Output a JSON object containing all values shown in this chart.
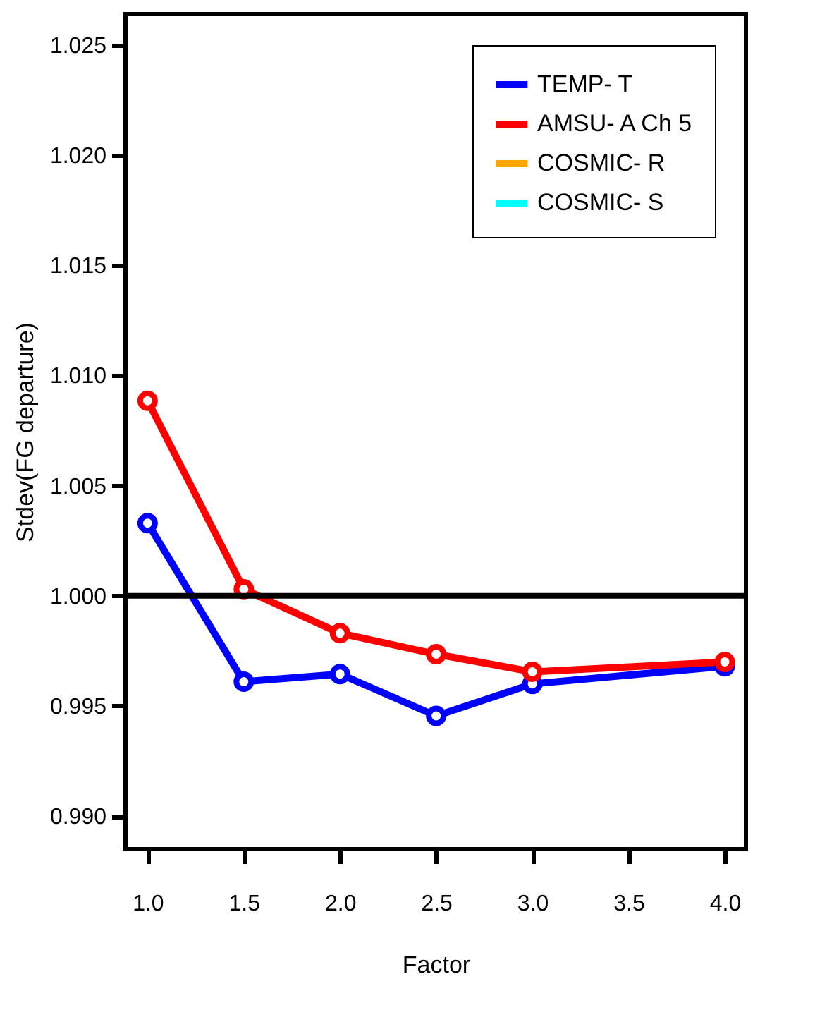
{
  "chart_data": {
    "type": "line",
    "xlabel": "Factor",
    "ylabel": "Stdev(FG departure)",
    "x": [
      1.0,
      1.5,
      2.0,
      2.5,
      3.0,
      4.0
    ],
    "series": [
      {
        "name": "TEMP- T",
        "color": "#0000ff",
        "values": [
          1.0033,
          0.9961,
          0.99645,
          0.99455,
          0.996,
          0.9968
        ]
      },
      {
        "name": "AMSU- A Ch 5",
        "color": "#ff0000",
        "values": [
          1.00885,
          1.0003,
          0.9983,
          0.99735,
          0.99655,
          0.997
        ]
      },
      {
        "name": "COSMIC- R",
        "color": "#ffa500",
        "values": [
          null,
          null,
          null,
          null,
          null,
          null
        ]
      },
      {
        "name": "COSMIC- S",
        "color": "#00ffff",
        "values": [
          null,
          null,
          null,
          null,
          null,
          null
        ]
      }
    ],
    "xlim": [
      0.885,
      4.11
    ],
    "xticks": [
      {
        "value": 1.0,
        "label": "1.0"
      },
      {
        "value": 1.5,
        "label": "1.5"
      },
      {
        "value": 2.0,
        "label": "2.0"
      },
      {
        "value": 2.5,
        "label": "2.5"
      },
      {
        "value": 3.0,
        "label": "3.0"
      },
      {
        "value": 3.5,
        "label": "3.5"
      },
      {
        "value": 4.0,
        "label": "4.0"
      }
    ],
    "ylim": [
      0.9885,
      1.0264
    ],
    "yticks": [
      {
        "value": 0.99,
        "label": "0.990"
      },
      {
        "value": 0.995,
        "label": "0.995"
      },
      {
        "value": 1.0,
        "label": "1.000"
      },
      {
        "value": 1.005,
        "label": "1.005"
      },
      {
        "value": 1.01,
        "label": "1.010"
      },
      {
        "value": 1.015,
        "label": "1.015"
      },
      {
        "value": 1.02,
        "label": "1.020"
      },
      {
        "value": 1.025,
        "label": "1.025"
      }
    ],
    "ref_lines": [
      {
        "axis": "y",
        "value": 1.0,
        "color": "#000000"
      }
    ],
    "marker": "circle",
    "line_style": "solid",
    "legend": "top right",
    "grid": false
  }
}
